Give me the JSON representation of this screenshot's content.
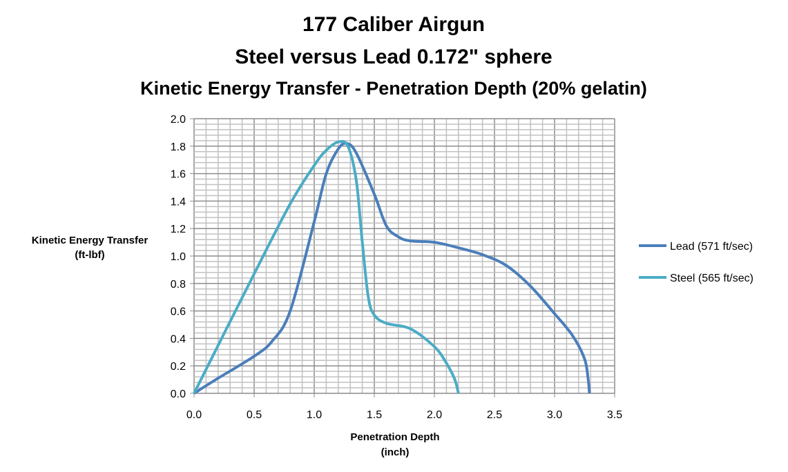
{
  "chart_data": {
    "type": "line",
    "title": [
      "177 Caliber Airgun",
      "Steel versus Lead 0.172\" sphere",
      "Kinetic Energy Transfer - Penetration Depth (20% gelatin)"
    ],
    "xlabel": [
      "Penetration Depth",
      "(inch)"
    ],
    "ylabel": [
      "Kinetic Energy Transfer",
      "(ft-lbf)"
    ],
    "xlim": [
      0,
      3.5
    ],
    "ylim": [
      0,
      2.0
    ],
    "xticks": [
      "0.0",
      "0.5",
      "1.0",
      "1.5",
      "2.0",
      "2.5",
      "3.0",
      "3.5"
    ],
    "yticks": [
      "0.0",
      "0.2",
      "0.4",
      "0.6",
      "0.8",
      "1.0",
      "1.2",
      "1.4",
      "1.6",
      "1.8",
      "2.0"
    ],
    "grid": true,
    "legend_position": "right",
    "series": [
      {
        "name": "Lead (571 ft/sec)",
        "color": "#4a7ebb",
        "x": [
          0,
          0.2,
          0.5,
          0.65,
          0.8,
          1.0,
          1.1,
          1.2,
          1.27,
          1.35,
          1.5,
          1.6,
          1.7,
          1.8,
          2.0,
          2.2,
          2.4,
          2.6,
          2.8,
          3.0,
          3.15,
          3.25,
          3.28,
          3.29
        ],
        "y": [
          0,
          0.11,
          0.27,
          0.38,
          0.6,
          1.25,
          1.6,
          1.78,
          1.82,
          1.75,
          1.45,
          1.22,
          1.14,
          1.11,
          1.1,
          1.06,
          1.01,
          0.93,
          0.78,
          0.58,
          0.42,
          0.25,
          0.1,
          0
        ]
      },
      {
        "name": "Steel (565 ft/sec)",
        "color": "#4bacc6",
        "x": [
          0,
          0.5,
          0.8,
          1.0,
          1.1,
          1.2,
          1.28,
          1.35,
          1.4,
          1.45,
          1.5,
          1.6,
          1.8,
          2.0,
          2.1,
          2.17,
          2.2
        ],
        "y": [
          0,
          0.87,
          1.38,
          1.66,
          1.77,
          1.83,
          1.8,
          1.55,
          1.1,
          0.7,
          0.57,
          0.51,
          0.47,
          0.34,
          0.22,
          0.1,
          0
        ]
      }
    ]
  }
}
